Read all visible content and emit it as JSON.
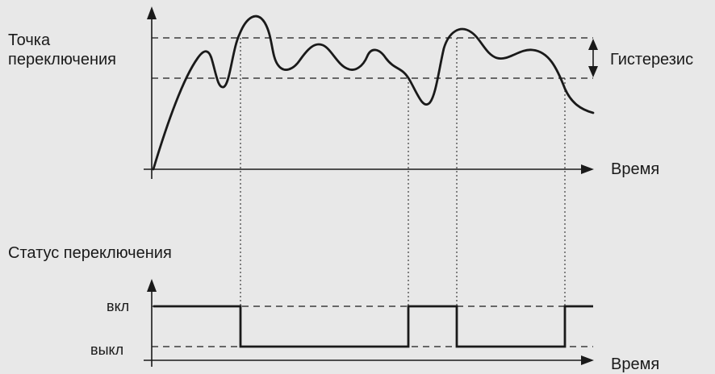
{
  "labels": {
    "switch_point": "Точка\nпереключения",
    "hysteresis": "Гистерезис",
    "time_top": "Время",
    "switch_status": "Статус переключения",
    "state_on": "вкл",
    "state_off": "выкл",
    "time_bottom": "Время"
  },
  "colors": {
    "background": "#e8e8e8",
    "ink": "#1a1a1a"
  },
  "diagram": {
    "states": [
      {
        "from": "start",
        "state": "вкл"
      },
      {
        "from": "crossing-1",
        "state": "выкл"
      },
      {
        "from": "crossing-2",
        "state": "вкл"
      },
      {
        "from": "crossing-3",
        "state": "выкл"
      },
      {
        "from": "crossing-4",
        "state": "вкл"
      }
    ]
  }
}
